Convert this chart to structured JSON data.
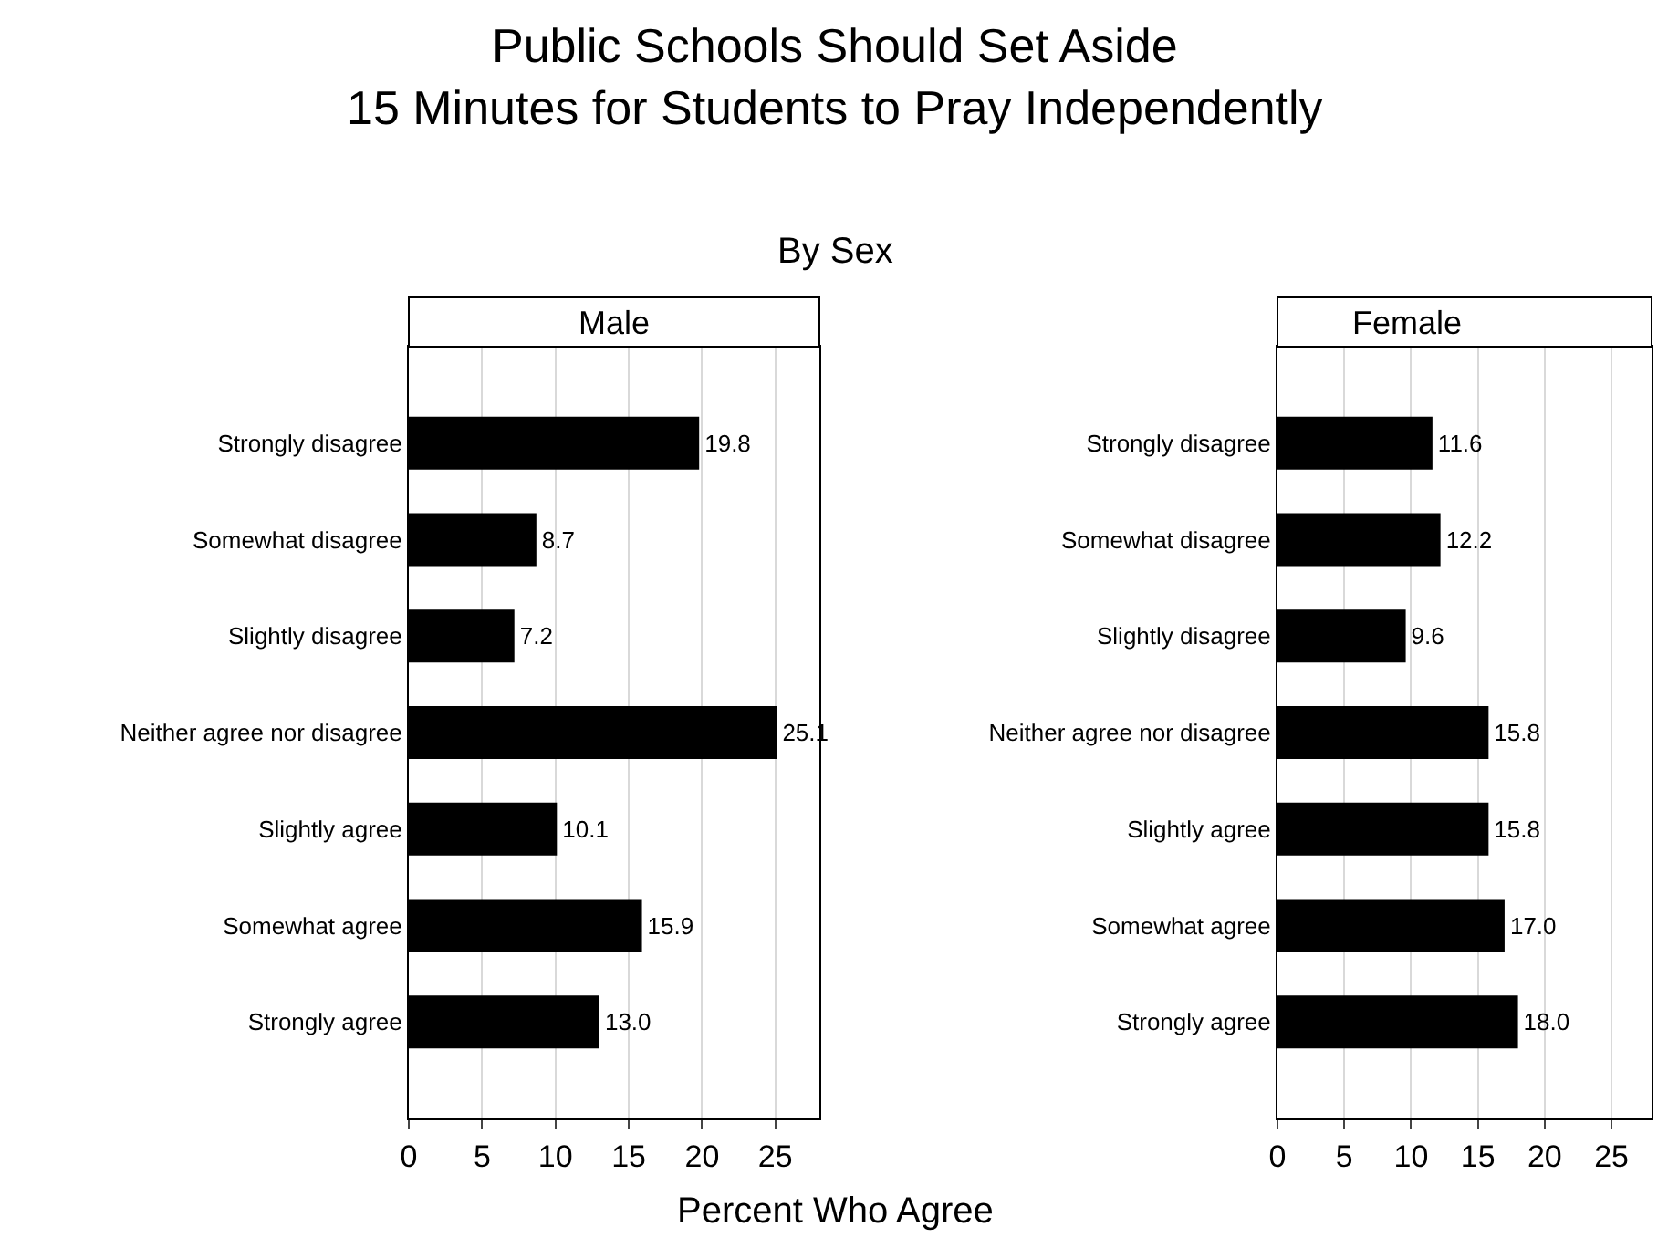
{
  "chart_data": [
    {
      "type": "bar",
      "orientation": "horizontal",
      "title": "Public Schools Should Set Aside\n15 Minutes for Students to Pray Independently",
      "subtitle": "By Sex",
      "xlabel": "Percent Who Agree",
      "categories": [
        "Strongly disagree",
        "Somewhat disagree",
        "Slightly disagree",
        "Neither agree nor disagree",
        "Slightly agree",
        "Somewhat agree",
        "Strongly agree"
      ],
      "series": [
        {
          "name": "Male",
          "color": "#000000",
          "values": [
            19.8,
            8.7,
            7.2,
            25.1,
            10.1,
            15.9,
            13.0
          ]
        }
      ],
      "value_labels": [
        "19.8",
        "8.7",
        "7.2",
        "25.1",
        "10.1",
        "15.9",
        "13.0"
      ],
      "xlim": [
        0,
        28
      ],
      "xticks": [
        0,
        5,
        10,
        15,
        20,
        25
      ],
      "grid": "x"
    },
    {
      "type": "bar",
      "orientation": "horizontal",
      "categories": [
        "Strongly disagree",
        "Somewhat disagree",
        "Slightly disagree",
        "Neither agree nor disagree",
        "Slightly agree",
        "Somewhat agree",
        "Strongly agree"
      ],
      "series": [
        {
          "name": "Female",
          "color": "#000000",
          "values": [
            11.6,
            12.2,
            9.6,
            15.8,
            15.8,
            17.0,
            18.0
          ]
        }
      ],
      "value_labels": [
        "11.6",
        "12.2",
        "9.6",
        "15.8",
        "15.8",
        "17.0",
        "18.0"
      ],
      "xlim": [
        0,
        28
      ],
      "xticks": [
        0,
        5,
        10,
        15,
        20,
        25
      ],
      "grid": "x"
    }
  ]
}
